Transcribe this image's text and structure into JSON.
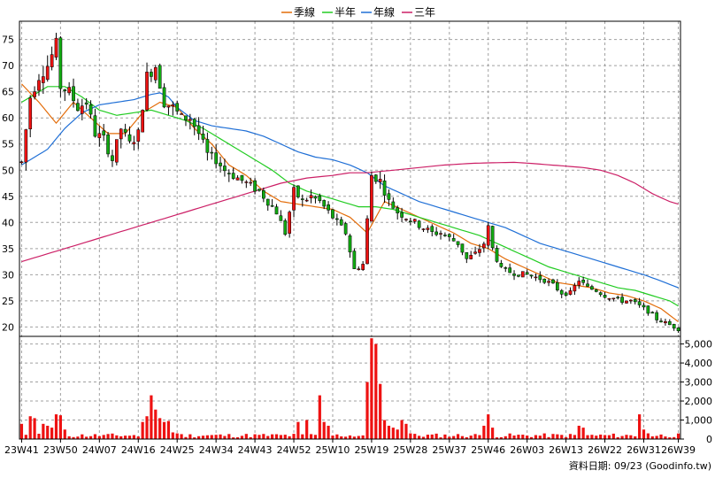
{
  "chart_data": {
    "type": "candlestick",
    "legend": [
      {
        "name": "季線",
        "color": "#e36c09"
      },
      {
        "name": "半年",
        "color": "#22cc22"
      },
      {
        "name": "年線",
        "color": "#1f6fd6"
      },
      {
        "name": "三年",
        "color": "#cc1f66"
      }
    ],
    "price_axis": {
      "ticks": [
        20,
        25,
        30,
        35,
        40,
        45,
        50,
        55,
        60,
        65,
        70,
        75
      ],
      "ylim": [
        18.2,
        78.5
      ]
    },
    "volume_axis": {
      "ticks": [
        "0",
        "1,000",
        "2,000",
        "3,000",
        "4,000",
        "5,000"
      ],
      "ylim": [
        0,
        5400
      ]
    },
    "x_tick_labels": [
      "23W41",
      "23W50",
      "24W07",
      "24W16",
      "24W25",
      "24W34",
      "24W43",
      "24W52",
      "25W10",
      "25W19",
      "25W28",
      "25W37",
      "25W46",
      "26W03",
      "26W13",
      "26W22",
      "26W31",
      "26W39"
    ],
    "x_tick_index": [
      0,
      9,
      18,
      27,
      36,
      45,
      54,
      63,
      72,
      81,
      90,
      99,
      108,
      117,
      126,
      135,
      144,
      152
    ],
    "n_weeks": 153,
    "grid": true,
    "price_path": [
      [
        0,
        51.5
      ],
      [
        2,
        64
      ],
      [
        4,
        68
      ],
      [
        6,
        70
      ],
      [
        8,
        74
      ],
      [
        9,
        66
      ],
      [
        11,
        65
      ],
      [
        13,
        62
      ],
      [
        15,
        63
      ],
      [
        17,
        57
      ],
      [
        19,
        56
      ],
      [
        21,
        52
      ],
      [
        23,
        58
      ],
      [
        25,
        55
      ],
      [
        27,
        57
      ],
      [
        29,
        68
      ],
      [
        31,
        70
      ],
      [
        33,
        63
      ],
      [
        35,
        62
      ],
      [
        37,
        60
      ],
      [
        39,
        60
      ],
      [
        41,
        57
      ],
      [
        43,
        53
      ],
      [
        45,
        52
      ],
      [
        47,
        50
      ],
      [
        49,
        49
      ],
      [
        51,
        48
      ],
      [
        53,
        47
      ],
      [
        55,
        46
      ],
      [
        57,
        44
      ],
      [
        59,
        42
      ],
      [
        61,
        38
      ],
      [
        63,
        46
      ],
      [
        65,
        44
      ],
      [
        67,
        45
      ],
      [
        69,
        44
      ],
      [
        71,
        42
      ],
      [
        73,
        40
      ],
      [
        75,
        38
      ],
      [
        77,
        31
      ],
      [
        79,
        32
      ],
      [
        81,
        49
      ],
      [
        83,
        48
      ],
      [
        85,
        44
      ],
      [
        87,
        42
      ],
      [
        89,
        41
      ],
      [
        91,
        40
      ],
      [
        93,
        39
      ],
      [
        95,
        38
      ],
      [
        97,
        38
      ],
      [
        99,
        37
      ],
      [
        101,
        36
      ],
      [
        103,
        33
      ],
      [
        105,
        34
      ],
      [
        107,
        36
      ],
      [
        108,
        39
      ],
      [
        109,
        35
      ],
      [
        111,
        31
      ],
      [
        113,
        30.5
      ],
      [
        115,
        30.2
      ],
      [
        117,
        30
      ],
      [
        119,
        29.5
      ],
      [
        121,
        29
      ],
      [
        123,
        28
      ],
      [
        125,
        26.5
      ],
      [
        127,
        26.5
      ],
      [
        129,
        29
      ],
      [
        131,
        27.5
      ],
      [
        133,
        27
      ],
      [
        135,
        26
      ],
      [
        137,
        25.5
      ],
      [
        139,
        25
      ],
      [
        141,
        25
      ],
      [
        143,
        24
      ],
      [
        145,
        23
      ],
      [
        147,
        21.5
      ],
      [
        149,
        20.8
      ],
      [
        151,
        20
      ],
      [
        152,
        19.6
      ]
    ],
    "ma_series": [
      {
        "name": "季線",
        "values": [
          [
            0,
            66.5
          ],
          [
            4,
            63
          ],
          [
            8,
            59
          ],
          [
            12,
            63
          ],
          [
            16,
            60
          ],
          [
            20,
            57
          ],
          [
            24,
            57
          ],
          [
            28,
            61
          ],
          [
            32,
            63
          ],
          [
            36,
            62
          ],
          [
            40,
            58
          ],
          [
            44,
            55
          ],
          [
            48,
            51
          ],
          [
            52,
            49
          ],
          [
            56,
            46
          ],
          [
            60,
            44
          ],
          [
            64,
            43.5
          ],
          [
            68,
            43
          ],
          [
            72,
            42.5
          ],
          [
            76,
            41
          ],
          [
            80,
            38
          ],
          [
            84,
            44
          ],
          [
            88,
            42.5
          ],
          [
            92,
            41
          ],
          [
            96,
            39.5
          ],
          [
            100,
            38
          ],
          [
            104,
            36
          ],
          [
            108,
            35
          ],
          [
            112,
            33
          ],
          [
            116,
            31.5
          ],
          [
            120,
            30
          ],
          [
            124,
            28.5
          ],
          [
            128,
            28
          ],
          [
            132,
            27.5
          ],
          [
            136,
            26.5
          ],
          [
            140,
            26
          ],
          [
            144,
            25
          ],
          [
            148,
            23.5
          ],
          [
            152,
            21
          ]
        ]
      },
      {
        "name": "半年",
        "values": [
          [
            0,
            63
          ],
          [
            6,
            66
          ],
          [
            10,
            66
          ],
          [
            14,
            64
          ],
          [
            18,
            61.5
          ],
          [
            22,
            60.5
          ],
          [
            26,
            61
          ],
          [
            30,
            61.5
          ],
          [
            34,
            60.5
          ],
          [
            38,
            59.5
          ],
          [
            42,
            58
          ],
          [
            46,
            56
          ],
          [
            50,
            54
          ],
          [
            54,
            52
          ],
          [
            58,
            50
          ],
          [
            62,
            47.5
          ],
          [
            66,
            46
          ],
          [
            70,
            45
          ],
          [
            74,
            44
          ],
          [
            78,
            43
          ],
          [
            82,
            43
          ],
          [
            86,
            42.5
          ],
          [
            90,
            41.5
          ],
          [
            94,
            40.5
          ],
          [
            98,
            39.5
          ],
          [
            102,
            38.5
          ],
          [
            106,
            37.5
          ],
          [
            110,
            36
          ],
          [
            114,
            34.5
          ],
          [
            118,
            33
          ],
          [
            122,
            31.5
          ],
          [
            126,
            30.5
          ],
          [
            130,
            29.5
          ],
          [
            134,
            28.5
          ],
          [
            138,
            27.5
          ],
          [
            142,
            27
          ],
          [
            146,
            26
          ],
          [
            150,
            25
          ],
          [
            152,
            24
          ]
        ]
      },
      {
        "name": "年線",
        "values": [
          [
            0,
            51
          ],
          [
            6,
            54
          ],
          [
            10,
            58
          ],
          [
            14,
            61
          ],
          [
            18,
            62.5
          ],
          [
            22,
            63
          ],
          [
            26,
            63.5
          ],
          [
            30,
            64.5
          ],
          [
            32,
            64.8
          ],
          [
            34,
            64
          ],
          [
            36,
            62
          ],
          [
            40,
            59.5
          ],
          [
            44,
            58.5
          ],
          [
            48,
            58
          ],
          [
            52,
            57.5
          ],
          [
            56,
            56.5
          ],
          [
            60,
            55
          ],
          [
            64,
            53.5
          ],
          [
            68,
            52.5
          ],
          [
            72,
            52
          ],
          [
            76,
            51
          ],
          [
            80,
            49.5
          ],
          [
            84,
            47
          ],
          [
            88,
            45.5
          ],
          [
            92,
            44
          ],
          [
            96,
            43
          ],
          [
            100,
            42
          ],
          [
            104,
            41
          ],
          [
            108,
            40
          ],
          [
            112,
            39
          ],
          [
            116,
            37.5
          ],
          [
            120,
            36
          ],
          [
            124,
            35
          ],
          [
            128,
            34
          ],
          [
            132,
            33
          ],
          [
            136,
            32
          ],
          [
            140,
            31
          ],
          [
            144,
            30
          ],
          [
            148,
            28.8
          ],
          [
            152,
            27.5
          ]
        ]
      },
      {
        "name": "三年",
        "values": [
          [
            0,
            32.5
          ],
          [
            6,
            34
          ],
          [
            12,
            35.5
          ],
          [
            18,
            37
          ],
          [
            24,
            38.5
          ],
          [
            30,
            40
          ],
          [
            36,
            41.5
          ],
          [
            42,
            43
          ],
          [
            48,
            44.5
          ],
          [
            54,
            46
          ],
          [
            60,
            47.5
          ],
          [
            66,
            48.5
          ],
          [
            72,
            49
          ],
          [
            76,
            49.5
          ],
          [
            80,
            49.5
          ],
          [
            86,
            50
          ],
          [
            92,
            50.5
          ],
          [
            98,
            51
          ],
          [
            104,
            51.3
          ],
          [
            108,
            51.4
          ],
          [
            114,
            51.5
          ],
          [
            118,
            51.3
          ],
          [
            124,
            50.9
          ],
          [
            130,
            50.5
          ],
          [
            134,
            50
          ],
          [
            138,
            49
          ],
          [
            142,
            47.5
          ],
          [
            146,
            45.5
          ],
          [
            150,
            44
          ],
          [
            152,
            43.5
          ]
        ]
      }
    ],
    "volume_spikes": [
      [
        0,
        800
      ],
      [
        2,
        1200
      ],
      [
        3,
        1100
      ],
      [
        5,
        800
      ],
      [
        6,
        700
      ],
      [
        7,
        600
      ],
      [
        8,
        1300
      ],
      [
        9,
        1250
      ],
      [
        10,
        500
      ],
      [
        28,
        900
      ],
      [
        29,
        1200
      ],
      [
        30,
        2300
      ],
      [
        31,
        1550
      ],
      [
        32,
        1100
      ],
      [
        33,
        900
      ],
      [
        34,
        950
      ],
      [
        35,
        350
      ],
      [
        36,
        300
      ],
      [
        64,
        900
      ],
      [
        66,
        1000
      ],
      [
        69,
        2300
      ],
      [
        70,
        900
      ],
      [
        71,
        700
      ],
      [
        80,
        3000
      ],
      [
        81,
        5300
      ],
      [
        82,
        5000
      ],
      [
        83,
        2900
      ],
      [
        84,
        1000
      ],
      [
        85,
        700
      ],
      [
        86,
        600
      ],
      [
        87,
        500
      ],
      [
        88,
        1000
      ],
      [
        89,
        800
      ],
      [
        90,
        300
      ],
      [
        107,
        700
      ],
      [
        108,
        1300
      ],
      [
        109,
        600
      ],
      [
        129,
        700
      ],
      [
        130,
        600
      ],
      [
        143,
        1300
      ],
      [
        144,
        500
      ],
      [
        145,
        300
      ]
    ]
  },
  "footer": {
    "source": "資料日期: 09/23 (Goodinfo.tw)"
  },
  "colors": {
    "up": "#ee1111",
    "down": "#11aa11",
    "volume": "#ee1111",
    "grid": "#a0a0a0",
    "frame": "#000000"
  }
}
